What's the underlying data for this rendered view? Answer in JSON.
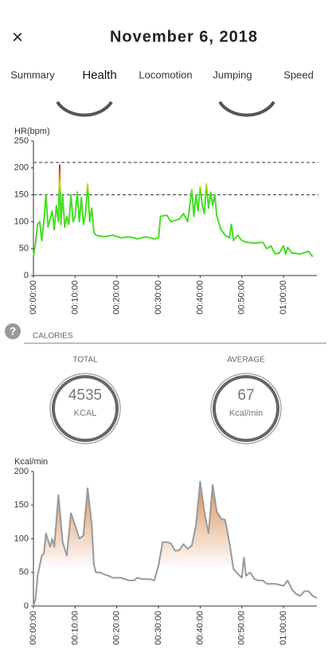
{
  "header": {
    "close": "×",
    "title": "November 6, 2018"
  },
  "tabs": {
    "items": [
      "Summary",
      "Health",
      "Locomotion",
      "Jumping",
      "Speed"
    ],
    "active": 1
  },
  "calories": {
    "help": "?",
    "label": "CALORIES",
    "total": {
      "label": "TOTAL",
      "value": 4535,
      "unit": "KCAL"
    },
    "average": {
      "label": "AVERAGE",
      "value": 67,
      "unit": "Kcal/min"
    }
  },
  "chart_data": [
    {
      "type": "line",
      "ylabel": "HR(bpm)",
      "xlim": [
        0,
        68
      ],
      "ylim": [
        0,
        250
      ],
      "yticks": [
        0,
        50,
        100,
        150,
        200,
        250
      ],
      "xticks": [
        {
          "value": 0,
          "label": "00:00:00"
        },
        {
          "value": 10,
          "label": "00:10:00"
        },
        {
          "value": 20,
          "label": "00:20:00"
        },
        {
          "value": 30,
          "label": "00:30:00"
        },
        {
          "value": 40,
          "label": "00:40:00"
        },
        {
          "value": 50,
          "label": "00:50:00"
        },
        {
          "value": 60,
          "label": "01:00:00"
        }
      ],
      "reference_lines": [
        150,
        210
      ],
      "x": [
        0,
        0.5,
        1,
        1.5,
        2,
        2.5,
        3,
        3.5,
        4,
        4.5,
        5,
        5.5,
        6,
        6.3,
        6.6,
        7,
        7.5,
        8,
        8.5,
        9,
        9.5,
        10,
        10.5,
        11,
        11.5,
        12,
        12.5,
        13,
        13.5,
        14,
        14.5,
        15,
        17,
        19,
        21,
        23,
        25,
        27,
        29,
        30,
        30.5,
        32,
        33,
        35,
        36,
        37,
        38,
        38.5,
        39,
        39.5,
        40,
        40.5,
        41,
        41.5,
        42,
        42.5,
        43,
        43.5,
        44,
        45,
        46,
        47,
        47.5,
        48,
        49,
        50,
        51,
        53,
        55,
        56,
        57,
        58,
        59,
        60,
        60.5,
        61,
        62,
        64,
        66,
        67
      ],
      "series": [
        {
          "color_stops": [
            {
              "value": 150,
              "color": "#44dd22"
            },
            {
              "value": 170,
              "color": "#d8d020"
            },
            {
              "value": 205,
              "color": "#cc2222"
            }
          ],
          "values": [
            35,
            60,
            95,
            100,
            65,
            100,
            150,
            90,
            105,
            120,
            85,
            130,
            100,
            205,
            95,
            150,
            90,
            110,
            95,
            150,
            100,
            110,
            155,
            100,
            145,
            95,
            115,
            170,
            100,
            125,
            80,
            75,
            72,
            75,
            70,
            72,
            68,
            72,
            68,
            70,
            110,
            112,
            100,
            105,
            115,
            100,
            160,
            110,
            150,
            120,
            165,
            130,
            115,
            170,
            125,
            155,
            130,
            150,
            110,
            85,
            75,
            70,
            95,
            65,
            75,
            65,
            62,
            60,
            62,
            50,
            55,
            40,
            42,
            55,
            40,
            52,
            42,
            40,
            45,
            35
          ]
        }
      ]
    },
    {
      "type": "area",
      "ylabel": "Kcal/min",
      "xlim": [
        0,
        68
      ],
      "ylim": [
        0,
        200
      ],
      "yticks": [
        0,
        50,
        100,
        150,
        200
      ],
      "xticks": [
        {
          "value": 0,
          "label": "00:00:00"
        },
        {
          "value": 10,
          "label": "00:10:00"
        },
        {
          "value": 20,
          "label": "00:20:00"
        },
        {
          "value": 30,
          "label": "00:30:00"
        },
        {
          "value": 40,
          "label": "00:40:00"
        },
        {
          "value": 50,
          "label": "00:50:00"
        },
        {
          "value": 60,
          "label": "01:00:00"
        }
      ],
      "x": [
        0,
        0.5,
        1,
        2,
        2.5,
        3,
        4,
        4.5,
        5,
        6,
        7,
        8,
        9,
        10,
        11,
        12,
        13,
        14,
        14.5,
        15,
        16,
        17,
        18,
        19,
        21,
        23,
        24,
        25,
        26,
        27,
        28,
        29,
        30,
        31,
        32,
        33,
        34,
        35,
        36,
        37,
        38,
        39,
        40,
        41,
        42,
        43,
        44,
        45,
        46,
        47,
        48,
        49,
        50,
        50.5,
        51,
        52,
        53,
        54,
        55,
        56,
        58,
        60,
        61,
        62,
        63,
        64,
        65,
        66,
        67,
        68
      ],
      "series": [
        {
          "color": "#999999",
          "fill_color": "#d9935f",
          "values": [
            0,
            10,
            45,
            75,
            78,
            108,
            88,
            100,
            88,
            165,
            95,
            75,
            138,
            120,
            100,
            105,
            175,
            120,
            62,
            50,
            50,
            47,
            45,
            42,
            42,
            38,
            38,
            42,
            40,
            40,
            40,
            38,
            60,
            95,
            95,
            93,
            82,
            83,
            92,
            85,
            90,
            120,
            185,
            140,
            108,
            180,
            140,
            130,
            128,
            95,
            55,
            48,
            42,
            72,
            45,
            50,
            40,
            38,
            38,
            33,
            33,
            30,
            38,
            25,
            18,
            15,
            22,
            22,
            15,
            12
          ]
        }
      ]
    }
  ]
}
